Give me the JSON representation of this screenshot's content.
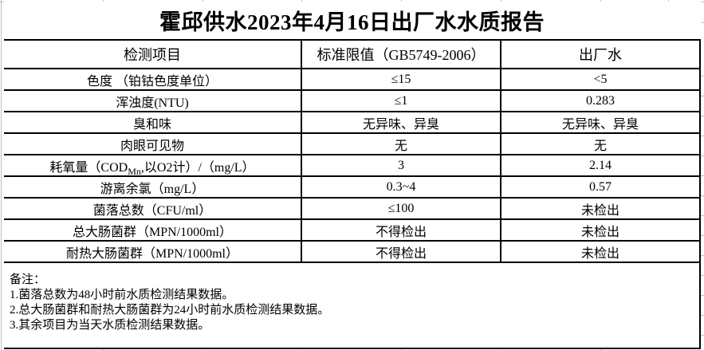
{
  "report": {
    "title": "霍邱供水2023年4月16日出厂水水质报告",
    "columns": {
      "item": "检测项目",
      "limit": "标准限值（GB5749-2006）",
      "value": "出厂水"
    },
    "rows": [
      {
        "item": "色度 （铂钴色度单位）",
        "limit": "≤15",
        "value": "<5"
      },
      {
        "item": "浑浊度(NTU)",
        "limit": "≤1",
        "value": "0.283"
      },
      {
        "item": "臭和味",
        "limit": "无异味、异臭",
        "value": "无异味、异臭"
      },
      {
        "item": "肉眼可见物",
        "limit": "无",
        "value": "无"
      },
      {
        "item_pre": "耗氧量（COD",
        "item_sub": "Mn",
        "item_post": ",以O2计）/（mg/L）",
        "limit": "3",
        "value": "2.14"
      },
      {
        "item": "游离余氯（mg/L）",
        "limit": "0.3~4",
        "value": "0.57"
      },
      {
        "item": "菌落总数（CFU/ml）",
        "limit": "≤100",
        "value": "未检出"
      },
      {
        "item": "总大肠菌群（MPN/1000ml）",
        "limit": "不得检出",
        "value": "未检出"
      },
      {
        "item": "耐热大肠菌群（MPN/1000ml）",
        "limit": "不得检出",
        "value": "未检出"
      }
    ],
    "notes": {
      "label": "备注：",
      "lines": [
        "1.菌落总数为48小时前水质检测结果数据。",
        "2.总大肠菌群和耐热大肠菌群为24小时前水质检测结果数据。",
        "3.其余项目为当天水质检测结果数据。"
      ]
    },
    "colors": {
      "table_border": "#000000",
      "gridline": "#b7becd",
      "background": "#ffffff",
      "text": "#000000"
    }
  }
}
